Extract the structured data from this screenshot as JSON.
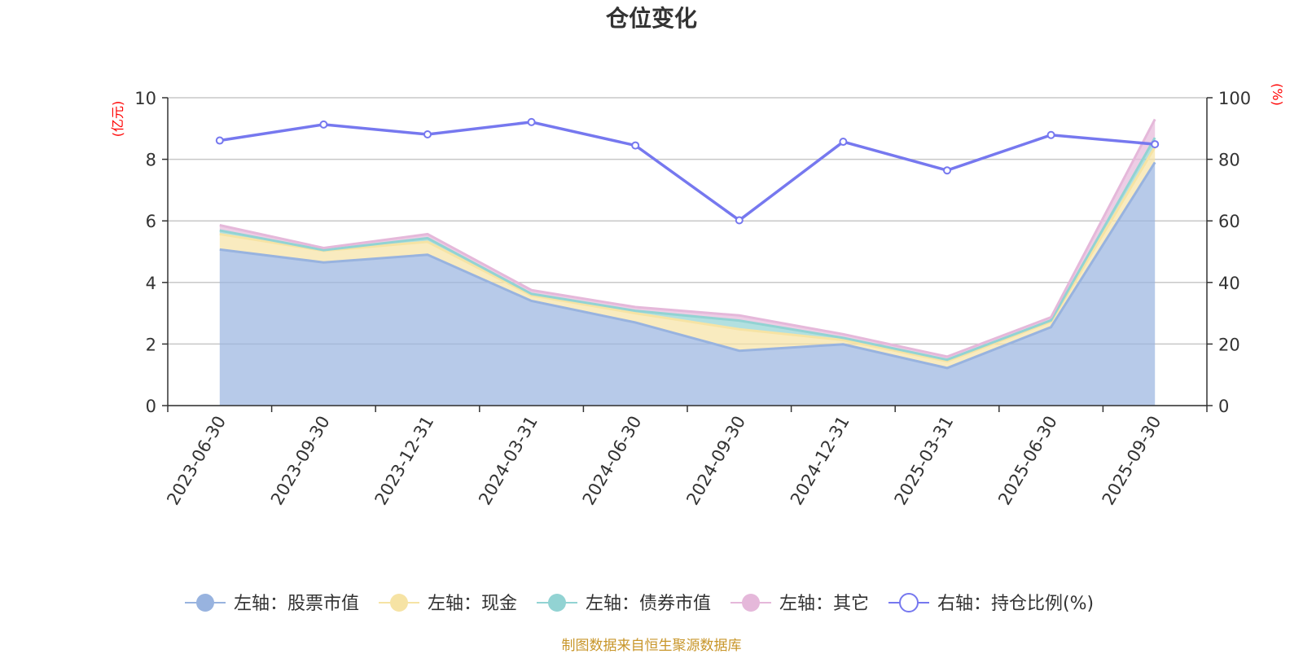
{
  "chart_data": {
    "type": "area",
    "title": "仓位变化",
    "categories": [
      "2023-06-30",
      "2023-09-30",
      "2023-12-31",
      "2024-03-31",
      "2024-06-30",
      "2024-09-30",
      "2024-12-31",
      "2025-03-31",
      "2025-06-30",
      "2025-09-30"
    ],
    "left_axis": {
      "unit": "(亿元)",
      "ylim": [
        0,
        10
      ],
      "ticks": [
        "0",
        "2",
        "4",
        "6",
        "8",
        "10"
      ]
    },
    "right_axis": {
      "unit": "(%)",
      "ylim": [
        0,
        100
      ],
      "ticks": [
        "0",
        "20",
        "40",
        "60",
        "80",
        "100"
      ]
    },
    "series": [
      {
        "name": "左轴：股票市值",
        "axis": "left",
        "stacked": true,
        "color": "#98b3df",
        "values": [
          5.07,
          4.65,
          4.9,
          3.4,
          2.7,
          1.78,
          1.99,
          1.22,
          2.55,
          7.9
        ]
      },
      {
        "name": "左轴：现金",
        "axis": "left",
        "stacked": true,
        "color": "#f6e3a4",
        "values": [
          0.5,
          0.38,
          0.42,
          0.18,
          0.3,
          0.7,
          0.14,
          0.22,
          0.18,
          0.5
        ]
      },
      {
        "name": "左轴：债券市值",
        "axis": "left",
        "stacked": true,
        "color": "#92d3d3",
        "values": [
          0.12,
          0.02,
          0.12,
          0.05,
          0.08,
          0.28,
          0.07,
          0.05,
          0.04,
          0.3
        ]
      },
      {
        "name": "左轴：其它",
        "axis": "left",
        "stacked": true,
        "color": "#e5b8da",
        "values": [
          0.17,
          0.07,
          0.13,
          0.12,
          0.12,
          0.17,
          0.12,
          0.1,
          0.1,
          0.6
        ]
      },
      {
        "name": "右轴：持仓比例(%)",
        "axis": "right",
        "type": "line",
        "color": "#7678ef",
        "values": [
          86.1,
          91.3,
          88.1,
          92.1,
          84.5,
          60.2,
          85.7,
          76.4,
          87.9,
          84.9
        ]
      }
    ]
  },
  "footer": "制图数据来自恒生聚源数据库"
}
